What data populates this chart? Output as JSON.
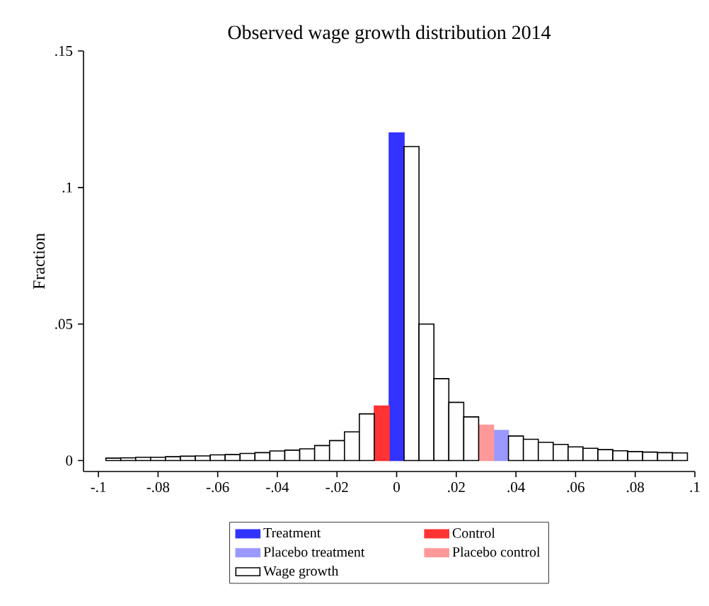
{
  "chart_data": {
    "type": "histogram",
    "title": "Observed wage growth distribution 2014",
    "ylabel": "Fraction",
    "bins": [
      -0.0975,
      -0.0925,
      -0.0875,
      -0.0825,
      -0.0775,
      -0.0725,
      -0.0675,
      -0.0625,
      -0.0575,
      -0.0525,
      -0.0475,
      -0.0425,
      -0.0375,
      -0.0325,
      -0.0275,
      -0.0225,
      -0.0175,
      -0.0125,
      -0.0075,
      -0.0025,
      0.0025,
      0.0075,
      0.0125,
      0.0175,
      0.0225,
      0.0275,
      0.0325,
      0.0375,
      0.0425,
      0.0475,
      0.0525,
      0.0575,
      0.0625,
      0.0675,
      0.0725,
      0.0775,
      0.0825,
      0.0875,
      0.0925,
      0.0975
    ],
    "series": [
      {
        "name": "Treatment",
        "color": "#3333ff",
        "values": [
          null,
          null,
          null,
          null,
          null,
          null,
          null,
          null,
          null,
          null,
          null,
          null,
          null,
          null,
          null,
          null,
          null,
          null,
          null,
          0.12,
          null,
          null,
          null,
          null,
          null,
          null,
          null,
          null,
          null,
          null,
          null,
          null,
          null,
          null,
          null,
          null,
          null,
          null,
          null
        ]
      },
      {
        "name": "Control",
        "color": "#ff3333",
        "values": [
          null,
          null,
          null,
          null,
          null,
          null,
          null,
          null,
          null,
          null,
          null,
          null,
          null,
          null,
          null,
          null,
          null,
          null,
          0.02,
          null,
          null,
          null,
          null,
          null,
          null,
          null,
          null,
          null,
          null,
          null,
          null,
          null,
          null,
          null,
          null,
          null,
          null,
          null,
          null
        ]
      },
      {
        "name": "Placebo treatment",
        "color": "#9999ff",
        "values": [
          null,
          null,
          null,
          null,
          null,
          null,
          null,
          null,
          null,
          null,
          null,
          null,
          null,
          null,
          null,
          null,
          null,
          null,
          null,
          null,
          null,
          null,
          null,
          null,
          null,
          null,
          0.011,
          null,
          null,
          null,
          null,
          null,
          null,
          null,
          null,
          null,
          null,
          null,
          null
        ]
      },
      {
        "name": "Placebo control",
        "color": "#ff9999",
        "values": [
          null,
          null,
          null,
          null,
          null,
          null,
          null,
          null,
          null,
          null,
          null,
          null,
          null,
          null,
          null,
          null,
          null,
          null,
          null,
          null,
          null,
          null,
          null,
          null,
          null,
          0.013,
          null,
          null,
          null,
          null,
          null,
          null,
          null,
          null,
          null,
          null,
          null,
          null,
          null
        ]
      },
      {
        "name": "Wage growth",
        "color": "#ffffff",
        "values": [
          0.0009,
          0.001,
          0.0012,
          0.0012,
          0.0014,
          0.0016,
          0.0017,
          0.0021,
          0.0022,
          0.0026,
          0.0029,
          0.0035,
          0.0038,
          0.0043,
          0.0055,
          0.0073,
          0.0105,
          0.0171,
          null,
          null,
          0.115,
          0.05,
          0.03,
          0.0213,
          0.016,
          null,
          null,
          0.009,
          0.0078,
          0.0067,
          0.0059,
          0.005,
          0.0045,
          0.004,
          0.0036,
          0.0033,
          0.0031,
          0.0029,
          0.0028
        ]
      }
    ],
    "xlim": [
      -0.105,
      0.1
    ],
    "ylim": [
      -0.004,
      0.15
    ],
    "xticks": [
      {
        "value": -0.1,
        "label": "-.1"
      },
      {
        "value": -0.08,
        "label": "-.08"
      },
      {
        "value": -0.06,
        "label": "-.06"
      },
      {
        "value": -0.04,
        "label": "-.04"
      },
      {
        "value": -0.02,
        "label": "-.02"
      },
      0,
      {
        "value": 0.02,
        "label": ".02"
      },
      {
        "value": 0.04,
        "label": ".04"
      },
      {
        "value": 0.06,
        "label": ".06"
      },
      {
        "value": 0.08,
        "label": ".08"
      },
      {
        "value": 0.1,
        "label": ".1"
      }
    ],
    "yticks": [
      0,
      {
        "value": 0.05,
        "label": ".05"
      },
      {
        "value": 0.1,
        "label": ".1"
      },
      {
        "value": 0.15,
        "label": ".15"
      }
    ],
    "legend": "bottom",
    "grid": false
  }
}
